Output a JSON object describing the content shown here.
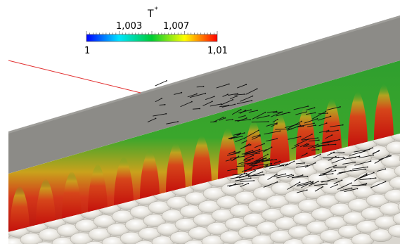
{
  "colorbar": {
    "title": "T",
    "title_superscript": "*",
    "min_label": "1",
    "max_label": "1,01",
    "mid_labels": [
      "1,003",
      "1,007"
    ],
    "colors": [
      "#0000ff",
      "#00e5ff",
      "#00cc33",
      "#ffff00",
      "#ff0000"
    ]
  },
  "colors": {
    "wall": "#8c8b87",
    "wall_top": "#a8a7a3",
    "field_cold": "#2aa12e",
    "field_hot": "#c8120d",
    "particles": "#e9e6df",
    "vectors": "#111111",
    "probe_line": "#e23030"
  }
}
